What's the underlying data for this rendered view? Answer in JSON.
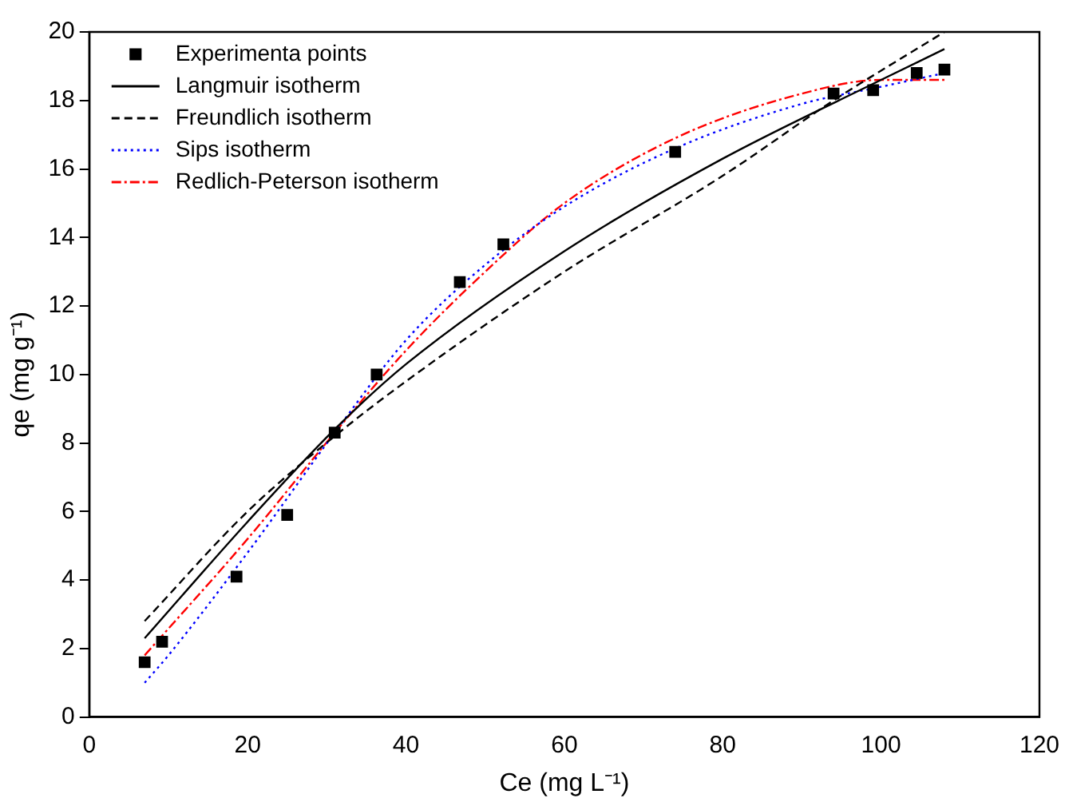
{
  "chart_data": {
    "type": "line",
    "xlabel": "Ce (mg L⁻¹)",
    "ylabel": "qe (mg g⁻¹)",
    "xlim": [
      0,
      120
    ],
    "xticks": [
      0,
      20,
      40,
      60,
      80,
      100,
      120
    ],
    "ylim": [
      0,
      20
    ],
    "yticks": [
      0,
      2,
      4,
      6,
      8,
      10,
      12,
      14,
      16,
      18,
      20
    ],
    "grid": false,
    "legend": "top left",
    "series": [
      {
        "name": "Experimenta points",
        "type": "scatter",
        "marker": "square",
        "color": "#000000",
        "x": [
          7,
          9.2,
          18.6,
          25,
          31,
          36.3,
          46.8,
          52.3,
          74,
          94,
          99,
          104.5,
          108
        ],
        "values": [
          1.6,
          2.2,
          4.1,
          5.9,
          8.3,
          10,
          12.7,
          13.8,
          16.5,
          18.2,
          18.3,
          18.8,
          18.9
        ]
      },
      {
        "name": "Langmuir isotherm",
        "type": "line",
        "line_style": "solid",
        "color": "#000000",
        "x": [
          7,
          20,
          31,
          40,
          60,
          80,
          100,
          108
        ],
        "values": [
          2.3,
          5.7,
          8.4,
          10.3,
          13.6,
          16.3,
          18.6,
          19.5
        ]
      },
      {
        "name": "Freundlich isotherm",
        "type": "line",
        "line_style": "dashed",
        "color": "#000000",
        "x": [
          7,
          20,
          31,
          40,
          60,
          80,
          94,
          108
        ],
        "values": [
          2.8,
          6,
          8.2,
          9.8,
          13,
          15.8,
          18,
          20
        ]
      },
      {
        "name": "Sips isotherm",
        "type": "line",
        "line_style": "dotted",
        "color": "#0000ff",
        "x": [
          7,
          10,
          20,
          31,
          40,
          50,
          60,
          74,
          90,
          100,
          108
        ],
        "values": [
          1,
          1.8,
          4.8,
          8.3,
          11,
          13.2,
          14.9,
          16.6,
          17.9,
          18.4,
          18.8
        ]
      },
      {
        "name": "Redlich-Peterson isotherm",
        "type": "line",
        "line_style": "dashdot",
        "color": "#ff0000",
        "x": [
          7,
          20,
          31,
          40,
          50,
          60,
          74,
          90,
          100,
          108
        ],
        "values": [
          1.8,
          5.2,
          8.3,
          10.7,
          13,
          15,
          16.9,
          18.2,
          18.6,
          18.6
        ]
      }
    ]
  }
}
